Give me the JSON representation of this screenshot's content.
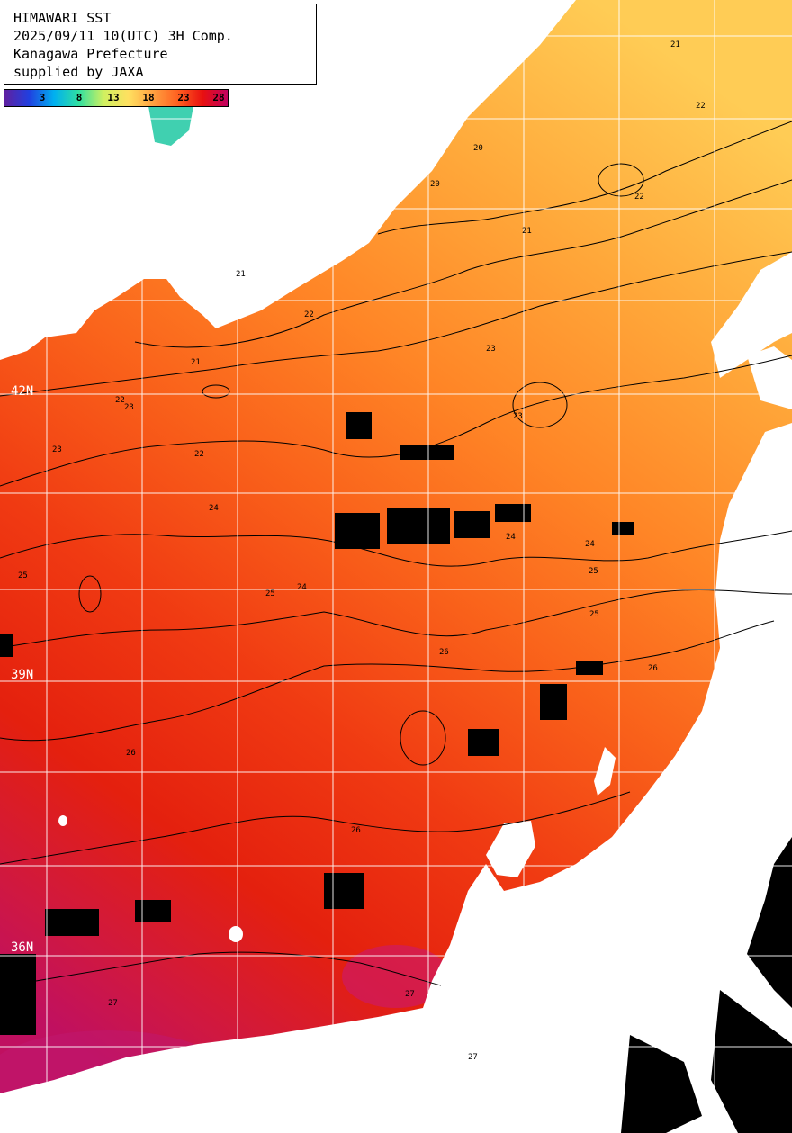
{
  "header": {
    "line1": "HIMAWARI SST",
    "line2": "2025/09/11 10(UTC) 3H Comp.",
    "line3": "Kanagawa Prefecture",
    "line4": "supplied by JAXA"
  },
  "colorbar": {
    "ticks": [
      "3",
      "8",
      "13",
      "18",
      "23",
      "28"
    ],
    "stops": [
      "#6020a0",
      "#2040e0",
      "#00b0f0",
      "#30e0a0",
      "#d0f060",
      "#ffe060",
      "#ffa040",
      "#ff6020",
      "#e81010",
      "#c00060"
    ]
  },
  "latitudes": [
    "42N",
    "39N",
    "36N"
  ],
  "contours": [
    "20",
    "21",
    "22",
    "23",
    "24",
    "25",
    "26",
    "27"
  ],
  "colors": {
    "land": "#ffffff",
    "no_data": "#000000",
    "grid": "#ffffff",
    "sst_20": "#ffb84a",
    "sst_22": "#ff8a2a",
    "sst_24": "#f85a18",
    "sst_26": "#ee2e10",
    "sst_28": "#c81848"
  }
}
